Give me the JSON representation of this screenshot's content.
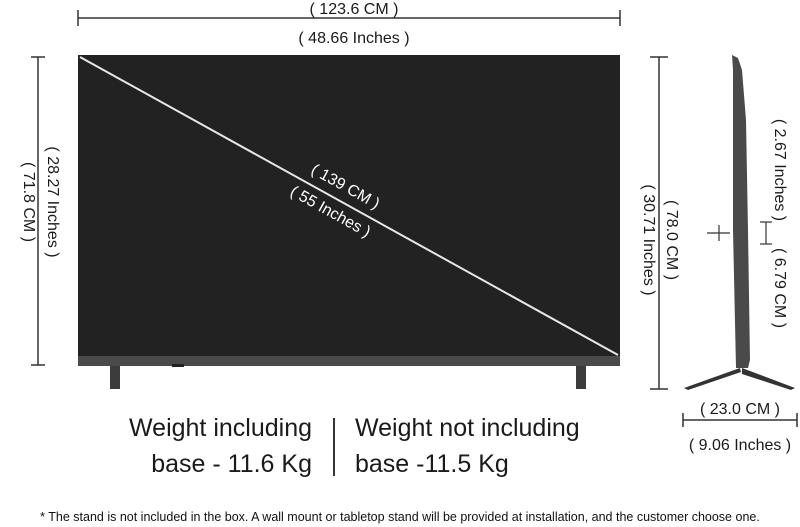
{
  "dimensions": {
    "width_cm": "( 123.6 CM )",
    "width_in": "( 48.66 Inches )",
    "height_cm": "( 71.8 CM )",
    "height_in": "( 28.27 Inches )",
    "diagonal_cm": "( 139 CM )",
    "diagonal_in": "( 55 Inches )",
    "height_with_stand_cm": "( 78.0 CM )",
    "height_with_stand_in": "( 30.71  Inches )",
    "depth_cm": "( 6.79 CM )",
    "depth_in": "( 2.67 Inches )",
    "stand_depth_cm": "( 23.0 CM )",
    "stand_depth_in": "( 9.06 Inches )"
  },
  "weight": {
    "including_line1": "Weight including",
    "including_line2": "base - 11.6 Kg",
    "not_including_line1": "Weight not including",
    "not_including_line2": "base -11.5 Kg"
  },
  "footnote": "* The stand is not included in the box. A wall mount or tabletop stand will be provided at installation, and the customer choose one.",
  "colors": {
    "screen": "#222222",
    "bezel": "#4a4a4a",
    "stand": "#3c3c3c",
    "lines": "#333333"
  }
}
